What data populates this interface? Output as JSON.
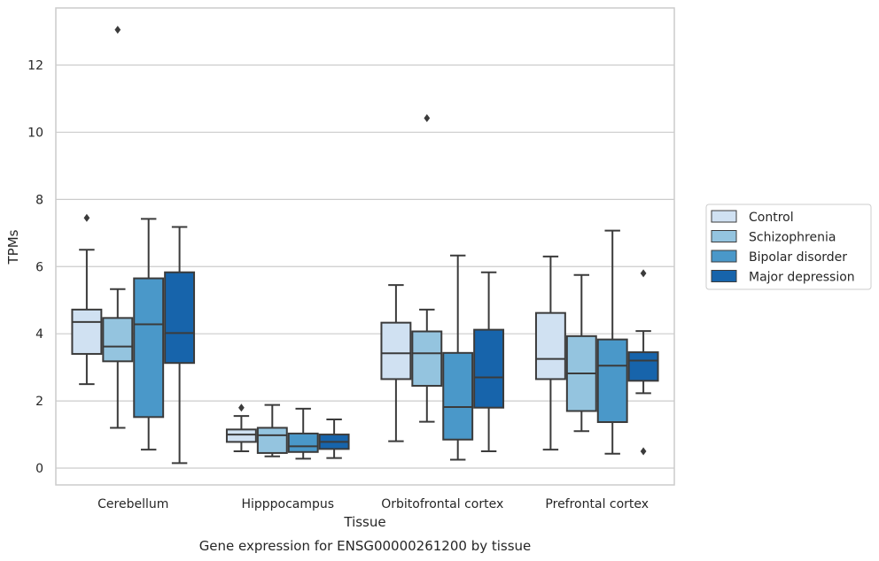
{
  "chart_data": {
    "type": "box",
    "xlabel": "Tissue",
    "ylabel": "TPMs",
    "caption": "Gene expression for ENSG00000261200 by tissue",
    "ylim": [
      -0.5,
      13.7
    ],
    "yticks": [
      "0",
      "2",
      "4",
      "6",
      "8",
      "10",
      "12"
    ],
    "grid": "horizontal",
    "legend_position": "right",
    "categories": [
      "Cerebellum",
      "Hipppocampus",
      "Orbitofrontal cortex",
      "Prefrontal cortex"
    ],
    "series": [
      {
        "name": "Control",
        "color": "#d0e1f2",
        "boxes": [
          {
            "whisker_low": 2.5,
            "q1": 3.4,
            "median": 4.35,
            "q3": 4.72,
            "whisker_high": 6.5,
            "outliers": [
              7.45
            ]
          },
          {
            "whisker_low": 0.5,
            "q1": 0.78,
            "median": 1.0,
            "q3": 1.15,
            "whisker_high": 1.55,
            "outliers": [
              1.8
            ]
          },
          {
            "whisker_low": 0.8,
            "q1": 2.65,
            "median": 3.42,
            "q3": 4.33,
            "whisker_high": 5.45,
            "outliers": []
          },
          {
            "whisker_low": 0.55,
            "q1": 2.65,
            "median": 3.25,
            "q3": 4.62,
            "whisker_high": 6.3,
            "outliers": []
          }
        ]
      },
      {
        "name": "Schizophrenia",
        "color": "#94c4df",
        "boxes": [
          {
            "whisker_low": 1.2,
            "q1": 3.18,
            "median": 3.62,
            "q3": 4.47,
            "whisker_high": 5.33,
            "outliers": [
              13.05
            ]
          },
          {
            "whisker_low": 0.35,
            "q1": 0.45,
            "median": 0.98,
            "q3": 1.2,
            "whisker_high": 1.88,
            "outliers": []
          },
          {
            "whisker_low": 1.38,
            "q1": 2.45,
            "median": 3.42,
            "q3": 4.07,
            "whisker_high": 4.72,
            "outliers": [
              10.42
            ]
          },
          {
            "whisker_low": 1.1,
            "q1": 1.7,
            "median": 2.82,
            "q3": 3.93,
            "whisker_high": 5.75,
            "outliers": []
          }
        ]
      },
      {
        "name": "Bipolar disorder",
        "color": "#4a98c9",
        "boxes": [
          {
            "whisker_low": 0.55,
            "q1": 1.52,
            "median": 4.28,
            "q3": 5.65,
            "whisker_high": 7.42,
            "outliers": []
          },
          {
            "whisker_low": 0.28,
            "q1": 0.48,
            "median": 0.65,
            "q3": 1.03,
            "whisker_high": 1.77,
            "outliers": []
          },
          {
            "whisker_low": 0.25,
            "q1": 0.85,
            "median": 1.82,
            "q3": 3.43,
            "whisker_high": 6.33,
            "outliers": []
          },
          {
            "whisker_low": 0.43,
            "q1": 1.37,
            "median": 3.05,
            "q3": 3.83,
            "whisker_high": 7.07,
            "outliers": []
          }
        ]
      },
      {
        "name": "Major depression",
        "color": "#1764ab",
        "boxes": [
          {
            "whisker_low": 0.15,
            "q1": 3.13,
            "median": 4.02,
            "q3": 5.83,
            "whisker_high": 7.18,
            "outliers": []
          },
          {
            "whisker_low": 0.3,
            "q1": 0.57,
            "median": 0.78,
            "q3": 1.0,
            "whisker_high": 1.45,
            "outliers": []
          },
          {
            "whisker_low": 0.5,
            "q1": 1.8,
            "median": 2.7,
            "q3": 4.12,
            "whisker_high": 5.83,
            "outliers": []
          },
          {
            "whisker_low": 2.23,
            "q1": 2.6,
            "median": 3.2,
            "q3": 3.45,
            "whisker_high": 4.08,
            "outliers": [
              5.8,
              0.5
            ]
          }
        ]
      }
    ]
  }
}
